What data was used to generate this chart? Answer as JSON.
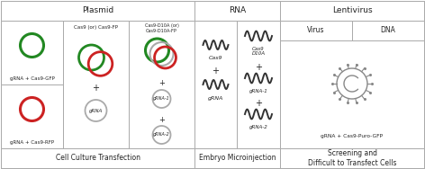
{
  "bg_color": "#ffffff",
  "border_color": "#aaaaaa",
  "green_color": "#228822",
  "red_color": "#cc2222",
  "gray_color": "#aaaaaa",
  "dark_color": "#222222",
  "section_titles": [
    "Plasmid",
    "RNA",
    "Lentivirus"
  ],
  "bottom_labels": [
    "Cell Culture Transfection",
    "Embryo Microinjection",
    "Screening and\nDifficult to Transfect Cells"
  ],
  "plasmid_labels_top": [
    "gRNA + Cas9-GFP",
    "Cas9 (or) Cas9-FP",
    "Cas9-D10A (or)\nCas9-D10A-FP"
  ],
  "plasmid_labels_bot": [
    "gRNA + Cas9-RFP",
    "gRNA",
    "gRNA-1",
    "gRNA-2"
  ],
  "rna_left": [
    "Cas9",
    "gRNA"
  ],
  "rna_right": [
    "Cas9\nD10A",
    "gRNA-1",
    "gRNA-2"
  ],
  "lenti_sub": [
    "Virus",
    "DNA"
  ],
  "lenti_main": "gRNA + Cas9-Puro-GFP",
  "figw": 4.72,
  "figh": 1.88,
  "dpi": 100
}
